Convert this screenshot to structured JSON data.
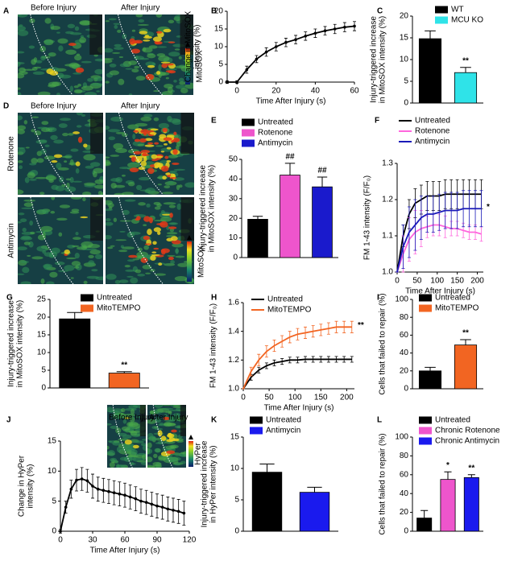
{
  "chart_data": [
    {
      "panel": "B",
      "type": "line",
      "ylabel": [
        "Change in MitoSOX",
        "intensity (%)"
      ],
      "xlabel": "Time After Injury (s)",
      "x": [
        -5,
        0,
        5,
        10,
        15,
        20,
        25,
        30,
        35,
        40,
        45,
        50,
        55,
        60
      ],
      "xlim": [
        -5,
        60
      ],
      "xticks": [
        0,
        20,
        40,
        60
      ],
      "ylim": [
        0,
        20
      ],
      "yticks": [
        0,
        5,
        10,
        15,
        20
      ],
      "markers": true,
      "series": [
        {
          "color": "#000000",
          "values": [
            0,
            0,
            3.5,
            6.5,
            8.5,
            10,
            11.2,
            12,
            13,
            13.8,
            14.5,
            15,
            15.5,
            15.8
          ],
          "errors": [
            0.4,
            0.4,
            1,
            1,
            1.2,
            1.2,
            1.2,
            1.2,
            1.2,
            1.2,
            1.2,
            1.3,
            1.3,
            1.3
          ]
        }
      ]
    },
    {
      "panel": "C",
      "type": "bar",
      "ylabel": [
        "Injury-triggered increase",
        "in MitoSOX intensity (%)"
      ],
      "categories": [
        "WT",
        "MCU KO"
      ],
      "values": [
        14.8,
        7
      ],
      "errors": [
        1.8,
        1.2
      ],
      "colors": [
        "#000000",
        "#2fe3e8"
      ],
      "annotations": [
        null,
        "**"
      ],
      "ylim": [
        0,
        20
      ],
      "yticks": [
        0,
        5,
        10,
        15,
        20
      ]
    },
    {
      "panel": "E",
      "type": "bar",
      "ylabel": [
        "Injury-triggered increase",
        "in MitoSOX intensity (%)"
      ],
      "categories": [
        "Untreated",
        "Rotenone",
        "Antimycin"
      ],
      "values": [
        19.5,
        42,
        36
      ],
      "errors": [
        1.5,
        6,
        5
      ],
      "colors": [
        "#000000",
        "#ee55cc",
        "#1a1acc"
      ],
      "annotations": [
        null,
        "##",
        "##"
      ],
      "ylim": [
        0,
        50
      ],
      "yticks": [
        0,
        10,
        20,
        30,
        40,
        50
      ]
    },
    {
      "panel": "F",
      "type": "line",
      "ylabel": [
        "FM 1-43 intensity (F/F₀)"
      ],
      "xlabel": "Time After Injury (s)",
      "x": [
        0,
        15,
        30,
        45,
        60,
        75,
        90,
        105,
        120,
        135,
        150,
        165,
        180,
        195,
        210
      ],
      "xlim": [
        0,
        215
      ],
      "xticks": [
        0,
        50,
        100,
        150,
        200
      ],
      "ylim": [
        1,
        1.3
      ],
      "yticks": [
        {
          "value": 1,
          "label": "1.0"
        },
        1.1,
        1.2,
        1.3
      ],
      "annotation": "*",
      "series": [
        {
          "name": "Untreated",
          "color": "#000000",
          "values": [
            1,
            1.1,
            1.16,
            1.19,
            1.2,
            1.21,
            1.21,
            1.21,
            1.215,
            1.215,
            1.215,
            1.215,
            1.215,
            1.215,
            1.215
          ],
          "errors": [
            0,
            0.03,
            0.04,
            0.04,
            0.04,
            0.04,
            0.04,
            0.04,
            0.04,
            0.04,
            0.04,
            0.04,
            0.04,
            0.04,
            0.04
          ]
        },
        {
          "name": "Rotenone",
          "color": "#ff66dd",
          "values": [
            1,
            1.05,
            1.09,
            1.11,
            1.12,
            1.125,
            1.13,
            1.13,
            1.125,
            1.12,
            1.12,
            1.115,
            1.11,
            1.11,
            1.105
          ],
          "errors": [
            0,
            0.05,
            0.06,
            0.06,
            0.05,
            0.03,
            0.03,
            0.03,
            0.03,
            0.02,
            0.02,
            0.02,
            0.02,
            0.02,
            0.02
          ]
        },
        {
          "name": "Antimycin",
          "color": "#1a1ab8",
          "values": [
            1,
            1.07,
            1.11,
            1.13,
            1.15,
            1.16,
            1.16,
            1.165,
            1.17,
            1.17,
            1.17,
            1.175,
            1.175,
            1.175,
            1.175
          ],
          "errors": [
            0,
            0.06,
            0.07,
            0.07,
            0.06,
            0.05,
            0.05,
            0.05,
            0.05,
            0.05,
            0.05,
            0.05,
            0.05,
            0.05,
            0.05
          ]
        }
      ]
    },
    {
      "panel": "G",
      "type": "bar",
      "ylabel": [
        "Injury-triggered increase",
        "in MitoSOX intensity (%)"
      ],
      "categories": [
        "Untreated",
        "MitoTEMPO"
      ],
      "values": [
        19.5,
        4.2
      ],
      "errors": [
        1.8,
        0.4
      ],
      "colors": [
        "#000000",
        "#f26522"
      ],
      "annotations": [
        null,
        "**"
      ],
      "ylim": [
        0,
        25
      ],
      "yticks": [
        0,
        5,
        10,
        15,
        20,
        25
      ]
    },
    {
      "panel": "H",
      "type": "line",
      "ylabel": [
        "FM 1-43 intensity (F/F₀)"
      ],
      "xlabel": "Time After Injury (s)",
      "x": [
        0,
        15,
        30,
        45,
        60,
        75,
        90,
        105,
        120,
        135,
        150,
        165,
        180,
        195,
        210
      ],
      "xlim": [
        0,
        215
      ],
      "xticks": [
        0,
        50,
        100,
        150,
        200
      ],
      "ylim": [
        1,
        1.6
      ],
      "yticks": [
        {
          "value": 1,
          "label": "1.0"
        },
        1.2,
        1.4,
        1.6
      ],
      "annotation": "**",
      "series": [
        {
          "name": "Untreated",
          "color": "#000000",
          "values": [
            1,
            1.08,
            1.13,
            1.16,
            1.18,
            1.19,
            1.2,
            1.2,
            1.205,
            1.205,
            1.205,
            1.205,
            1.205,
            1.205,
            1.205
          ],
          "errors": [
            0,
            0.02,
            0.02,
            0.02,
            0.02,
            0.02,
            0.02,
            0.02,
            0.02,
            0.02,
            0.02,
            0.02,
            0.02,
            0.02,
            0.02
          ]
        },
        {
          "name": "MitoTEMPO",
          "color": "#f26522",
          "values": [
            1,
            1.12,
            1.2,
            1.26,
            1.3,
            1.33,
            1.36,
            1.38,
            1.39,
            1.4,
            1.41,
            1.42,
            1.43,
            1.43,
            1.43
          ],
          "errors": [
            0,
            0.03,
            0.04,
            0.04,
            0.04,
            0.04,
            0.04,
            0.04,
            0.04,
            0.04,
            0.04,
            0.04,
            0.04,
            0.04,
            0.04
          ]
        }
      ]
    },
    {
      "panel": "I",
      "type": "bar",
      "ylabel": [
        "Cells that failed to repair (%)"
      ],
      "categories": [
        "Untreated",
        "MitoTEMPO"
      ],
      "values": [
        20,
        49
      ],
      "errors": [
        4,
        6
      ],
      "colors": [
        "#000000",
        "#f26522"
      ],
      "annotations": [
        null,
        "**"
      ],
      "ylim": [
        0,
        100
      ],
      "yticks": [
        0,
        20,
        40,
        60,
        80,
        100
      ]
    },
    {
      "panel": "J",
      "type": "line",
      "ylabel": [
        "Change in HyPer",
        "intensity (%)"
      ],
      "xlabel": "Time After Injury (s)",
      "x": [
        0,
        5,
        10,
        15,
        20,
        25,
        30,
        35,
        40,
        45,
        50,
        55,
        60,
        65,
        70,
        75,
        80,
        85,
        90,
        95,
        100,
        105,
        110,
        115
      ],
      "xlim": [
        0,
        120
      ],
      "xticks": [
        0,
        30,
        60,
        90,
        120
      ],
      "ylim": [
        0,
        15
      ],
      "yticks": [
        0,
        5,
        10,
        15
      ],
      "markers": true,
      "series": [
        {
          "color": "#000000",
          "values": [
            0,
            4,
            7,
            8.5,
            8.7,
            8.4,
            7.5,
            7,
            6.8,
            6.6,
            6.4,
            6.2,
            6,
            5.7,
            5.4,
            5,
            4.8,
            4.5,
            4.2,
            4,
            3.7,
            3.5,
            3.3,
            3
          ],
          "errors": [
            0.3,
            1,
            1.5,
            1.8,
            1.9,
            1.9,
            2,
            2,
            2,
            2,
            2,
            2,
            2,
            2,
            2,
            2,
            2,
            2,
            2,
            2,
            2,
            2,
            2,
            2
          ]
        }
      ]
    },
    {
      "panel": "K",
      "type": "bar",
      "ylabel": [
        "Injury-triggered increase",
        "in HyPer intensity (%)"
      ],
      "categories": [
        "Untreated",
        "Antimycin"
      ],
      "values": [
        9.4,
        6.2
      ],
      "errors": [
        1.3,
        0.8
      ],
      "colors": [
        "#000000",
        "#1a1aee"
      ],
      "annotations": [
        null,
        null
      ],
      "ylim": [
        0,
        15
      ],
      "yticks": [
        0,
        5,
        10,
        15
      ]
    },
    {
      "panel": "L",
      "type": "bar",
      "ylabel": [
        "Cells that failed to repair (%)"
      ],
      "categories": [
        "Untreated",
        "Chronic Rotenone",
        "Chronic Antimycin"
      ],
      "values": [
        14,
        55,
        57
      ],
      "errors": [
        8,
        8,
        3
      ],
      "colors": [
        "#000000",
        "#ee55cc",
        "#1a1aee"
      ],
      "annotations": [
        null,
        "*",
        "**"
      ],
      "ylim": [
        0,
        100
      ],
      "yticks": [
        0,
        20,
        40,
        60,
        80,
        100
      ]
    }
  ],
  "image_panels": [
    {
      "panel": "A",
      "labels": [
        "Before Injury",
        "After Injury"
      ],
      "colorbar": "MitoSOX"
    },
    {
      "panel": "D",
      "labels": [
        "Before Injury",
        "After Injury"
      ],
      "rows": [
        "Rotenone",
        "Antimycin"
      ],
      "colorbar": "MitoSOX"
    },
    {
      "labels": [
        "Before Injury",
        "After Injury"
      ],
      "colorbar": "HyPer"
    }
  ]
}
